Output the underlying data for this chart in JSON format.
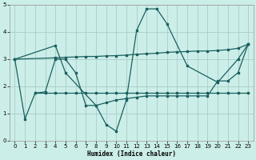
{
  "xlabel": "Humidex (Indice chaleur)",
  "bg_color": "#cceee8",
  "grid_color": "#aacccc",
  "line_color": "#1a6060",
  "xlim": [
    -0.5,
    23.5
  ],
  "ylim": [
    0,
    5
  ],
  "xticks": [
    0,
    1,
    2,
    3,
    4,
    5,
    6,
    7,
    8,
    9,
    10,
    11,
    12,
    13,
    14,
    15,
    16,
    17,
    18,
    19,
    20,
    21,
    22,
    23
  ],
  "yticks": [
    0,
    1,
    2,
    3,
    4,
    5
  ],
  "s1_x": [
    0,
    4,
    5,
    8,
    9,
    10,
    11,
    12,
    13,
    14,
    15,
    17,
    20,
    22,
    23
  ],
  "s1_y": [
    3.0,
    3.5,
    2.5,
    1.3,
    0.6,
    0.35,
    1.5,
    4.05,
    4.85,
    4.85,
    4.3,
    2.75,
    2.15,
    3.0,
    3.55
  ],
  "s2_x": [
    0,
    1,
    2,
    3,
    4,
    5,
    6,
    7,
    8,
    9,
    10,
    11,
    12,
    13,
    14,
    15,
    16,
    17,
    18,
    19,
    20,
    21,
    22,
    23
  ],
  "s2_y": [
    3.0,
    0.8,
    1.75,
    1.8,
    3.0,
    3.0,
    2.5,
    1.3,
    1.3,
    1.4,
    1.5,
    1.55,
    1.6,
    1.65,
    1.65,
    1.65,
    1.65,
    1.65,
    1.65,
    1.65,
    2.2,
    2.2,
    2.5,
    3.55
  ],
  "s3_x": [
    0,
    4,
    5,
    6,
    7,
    8,
    9,
    10,
    11,
    12,
    13,
    14,
    15,
    16,
    17,
    18,
    19,
    20,
    21,
    22,
    23
  ],
  "s3_y": [
    3.0,
    3.05,
    3.07,
    3.08,
    3.1,
    3.1,
    3.12,
    3.13,
    3.15,
    3.18,
    3.2,
    3.22,
    3.25,
    3.27,
    3.28,
    3.3,
    3.3,
    3.32,
    3.35,
    3.4,
    3.55
  ],
  "s4_x": [
    2,
    3,
    4,
    5,
    6,
    7,
    8,
    9,
    10,
    11,
    12,
    13,
    14,
    15,
    16,
    17,
    18,
    19,
    20,
    21,
    22,
    23
  ],
  "s4_y": [
    1.75,
    1.75,
    1.75,
    1.75,
    1.75,
    1.75,
    1.75,
    1.75,
    1.75,
    1.75,
    1.75,
    1.75,
    1.75,
    1.75,
    1.75,
    1.75,
    1.75,
    1.75,
    1.75,
    1.75,
    1.75,
    1.75
  ]
}
